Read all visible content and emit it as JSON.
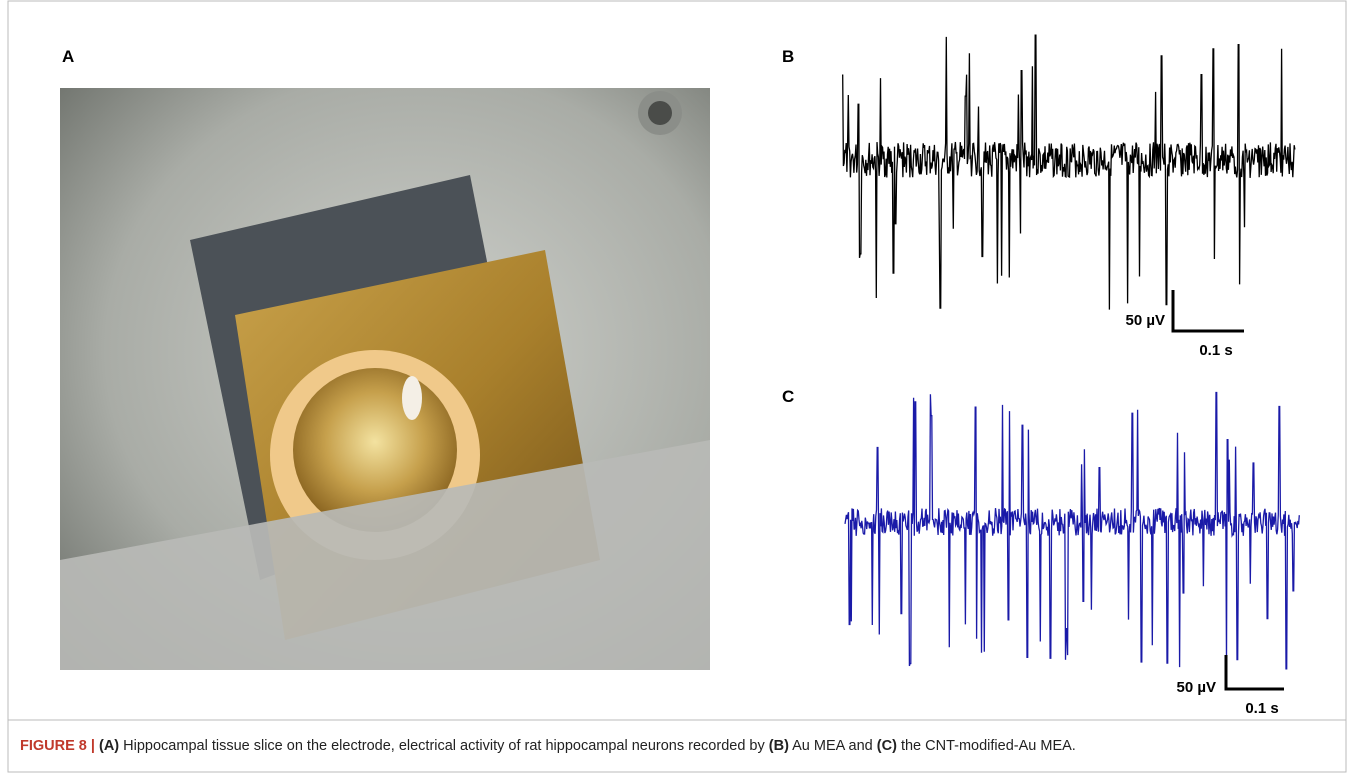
{
  "panels": {
    "a": {
      "label": "A"
    },
    "b": {
      "label": "B",
      "scale_y": "50 µV",
      "scale_x": "0.1 s"
    },
    "c": {
      "label": "C",
      "scale_y": "50 µV",
      "scale_x": "0.1 s"
    }
  },
  "caption": {
    "runs": [
      {
        "text": "FIGURE 8 | ",
        "bold": true
      },
      {
        "text": "(A)",
        "bold": true
      },
      {
        "text": " Hippocampal tissue slice on the electrode, electrical activity of rat hippocampal neurons recorded by ",
        "bold": false
      },
      {
        "text": "(B)",
        "bold": true
      },
      {
        "text": " Au MEA and ",
        "bold": false
      },
      {
        "text": "(C)",
        "bold": true
      },
      {
        "text": " the CNT-modified-Au MEA.",
        "bold": false
      }
    ]
  }
}
